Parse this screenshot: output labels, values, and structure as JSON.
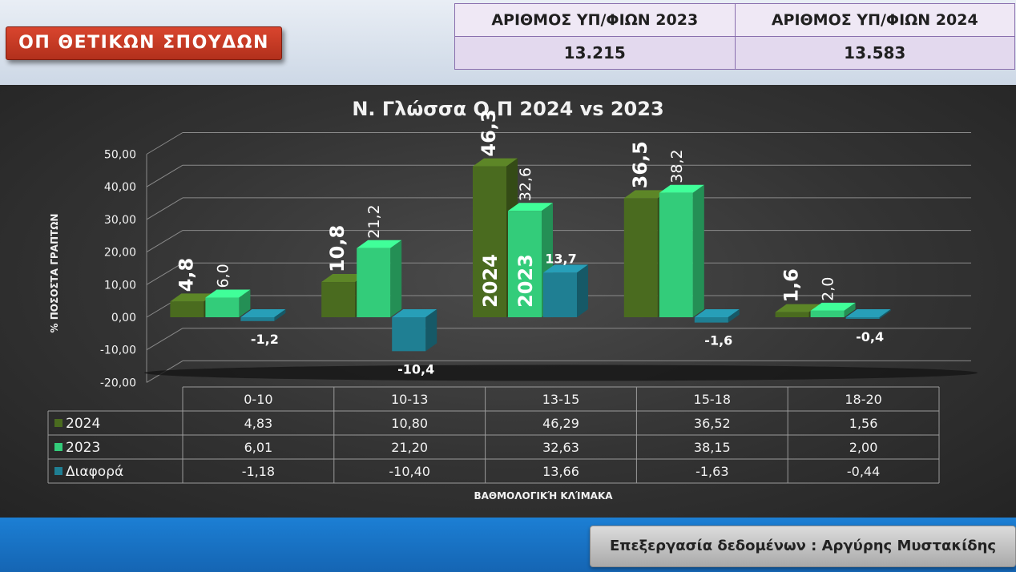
{
  "header": {
    "badge": "ΟΠ ΘΕΤΙΚΩΝ ΣΠΟΥΔΩΝ",
    "stats": [
      {
        "label": "ΑΡΙΘΜΟΣ ΥΠ/ΦΙΩΝ 2023",
        "value": "13.215"
      },
      {
        "label": "ΑΡΙΘΜΟΣ ΥΠ/ΦΙΩΝ 2024",
        "value": "13.583"
      }
    ]
  },
  "footer": {
    "credit": "Επεξεργασία δεδομένων : Αργύρης Μυστακίδης"
  },
  "colors": {
    "s2024": "#4a6b1f",
    "s2023": "#33cc7a",
    "diff": "#1f7f93",
    "grid": "#8a8a8a",
    "text": "#f2f2f2"
  },
  "chart_data": {
    "type": "bar",
    "title": "Ν. Γλώσσα Ο.Π 2024 vs 2023",
    "xlabel": "ΒΑΘΜΟΛΟΓΙΚΉ ΚΛΊΜΑΚΑ",
    "ylabel": "% ΠΟΣΟΣΤΑ ΓΡΑΠΤΩΝ",
    "categories": [
      "0-10",
      "10-13",
      "13-15",
      "15-18",
      "18-20"
    ],
    "ylim": [
      -20,
      50
    ],
    "yticks": [
      "50,00",
      "40,00",
      "30,00",
      "20,00",
      "10,00",
      "0,00",
      "-10,00",
      "-20,00"
    ],
    "series": [
      {
        "name": "2024",
        "values": [
          4.83,
          10.8,
          46.29,
          36.52,
          1.56
        ],
        "labels": [
          "4,8",
          "10,8",
          "46,3",
          "36,5",
          "1,6"
        ],
        "table": [
          "4,83",
          "10,80",
          "46,29",
          "36,52",
          "1,56"
        ]
      },
      {
        "name": "2023",
        "values": [
          6.01,
          21.2,
          32.63,
          38.15,
          2.0
        ],
        "labels": [
          "6,0",
          "21,2",
          "32,6",
          "38,2",
          "2,0"
        ],
        "table": [
          "6,01",
          "21,20",
          "32,63",
          "38,15",
          "2,00"
        ]
      },
      {
        "name": "Διαφορά",
        "values": [
          -1.18,
          -10.4,
          13.66,
          -1.63,
          -0.44
        ],
        "labels": [
          "-1,2",
          "-10,4",
          "13,7",
          "-1,6",
          "-0,4"
        ],
        "table": [
          "-1,18",
          "-10,40",
          "13,66",
          "-1,63",
          "-0,44"
        ]
      }
    ],
    "bar_annotations": [
      "2024",
      "2023"
    ],
    "grid": true,
    "legend": "data-table"
  }
}
